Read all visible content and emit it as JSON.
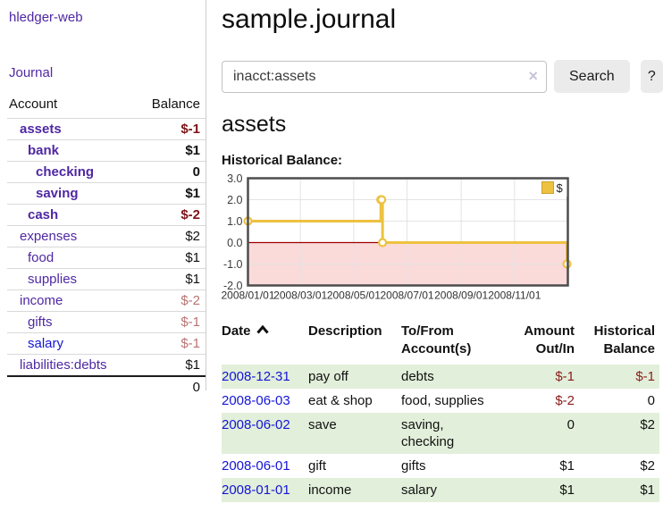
{
  "brand": "hledger-web",
  "sidebar": {
    "nav_journal": "Journal",
    "accounts": {
      "col_account": "Account",
      "col_balance": "Balance",
      "rows": [
        {
          "name": "assets",
          "balance": "$-1",
          "depth": 0,
          "bold": true
        },
        {
          "name": "bank",
          "balance": "$1",
          "depth": 1,
          "bold": true
        },
        {
          "name": "checking",
          "balance": "0",
          "depth": 2,
          "bold": true
        },
        {
          "name": "saving",
          "balance": "$1",
          "depth": 2,
          "bold": true
        },
        {
          "name": "cash",
          "balance": "$-2",
          "depth": 1,
          "bold": true
        },
        {
          "name": "expenses",
          "balance": "$2",
          "depth": 0,
          "bold": false
        },
        {
          "name": "food",
          "balance": "$1",
          "depth": 1,
          "bold": false
        },
        {
          "name": "supplies",
          "balance": "$1",
          "depth": 1,
          "bold": false
        },
        {
          "name": "income",
          "balance": "$-2",
          "depth": 0,
          "bold": false
        },
        {
          "name": "gifts",
          "balance": "$-1",
          "depth": 1,
          "bold": false
        },
        {
          "name": "salary",
          "balance": "$-1",
          "depth": 1,
          "bold": false,
          "unvisited": true
        },
        {
          "name": "liabilities:debts",
          "balance": "$1",
          "depth": 0,
          "bold": false
        }
      ],
      "total": "0"
    }
  },
  "main": {
    "title": "sample.journal",
    "search": {
      "value": "inacct:assets",
      "clear_icon": "×",
      "search_button": "Search",
      "help_button": "?"
    },
    "account_heading": "assets",
    "chart_title": "Historical Balance:"
  },
  "chart_data": {
    "type": "line",
    "step": true,
    "title": "Historical Balance:",
    "series": [
      {
        "name": "$",
        "color": "#edc240",
        "points": [
          {
            "date": "2008-01-01",
            "value": 1
          },
          {
            "date": "2008-06-01",
            "value": 2
          },
          {
            "date": "2008-06-02",
            "value": 2
          },
          {
            "date": "2008-06-03",
            "value": 0
          },
          {
            "date": "2008-12-31",
            "value": -1
          }
        ]
      }
    ],
    "xlim": [
      "2008-01-01",
      "2009-01-01"
    ],
    "ylim": [
      -2,
      3
    ],
    "yticks": [
      {
        "value": 3,
        "label": "3.0"
      },
      {
        "value": 2,
        "label": "2.0"
      },
      {
        "value": 1,
        "label": "1.0"
      },
      {
        "value": 0,
        "label": "0.0"
      },
      {
        "value": -1,
        "label": "-1.0"
      },
      {
        "value": -2,
        "label": "-2.0"
      }
    ],
    "xticks": [
      {
        "date": "2008-01-01",
        "label": "2008/01/01"
      },
      {
        "date": "2008-03-01",
        "label": "2008/03/01"
      },
      {
        "date": "2008-05-01",
        "label": "2008/05/01"
      },
      {
        "date": "2008-07-01",
        "label": "2008/07/01"
      },
      {
        "date": "2008-09-01",
        "label": "2008/09/01"
      },
      {
        "date": "2008-11-01",
        "label": "2008/11/01"
      }
    ],
    "grid": true,
    "legend_position": "top-right",
    "colors": {
      "grid": "#e3e3e3",
      "border": "#4d4d4d",
      "negative_region": "#fbdada",
      "zero_line": "#9c0000",
      "marker_fill": "#ffffff",
      "legend_swatch_border": "#caa12f"
    }
  },
  "register": {
    "headers": [
      {
        "label": "Date",
        "sorted": "asc"
      },
      {
        "label": "Description"
      },
      {
        "label": "To/From\nAccount(s)"
      },
      {
        "label": "Amount\nOut/In",
        "align": "right"
      },
      {
        "label": "Historical\nBalance",
        "align": "right"
      }
    ],
    "rows": [
      {
        "date": "2008-12-31",
        "description": "pay off",
        "accounts": "debts",
        "amount": "$-1",
        "balance": "$-1"
      },
      {
        "date": "2008-06-03",
        "description": "eat & shop",
        "accounts": "food, supplies",
        "amount": "$-2",
        "balance": "0"
      },
      {
        "date": "2008-06-02",
        "description": "save",
        "accounts": "saving, checking",
        "amount": "0",
        "balance": "$2"
      },
      {
        "date": "2008-06-01",
        "description": "gift",
        "accounts": "gifts",
        "amount": "$1",
        "balance": "$2"
      },
      {
        "date": "2008-01-01",
        "description": "income",
        "accounts": "salary",
        "amount": "$1",
        "balance": "$1"
      }
    ]
  }
}
